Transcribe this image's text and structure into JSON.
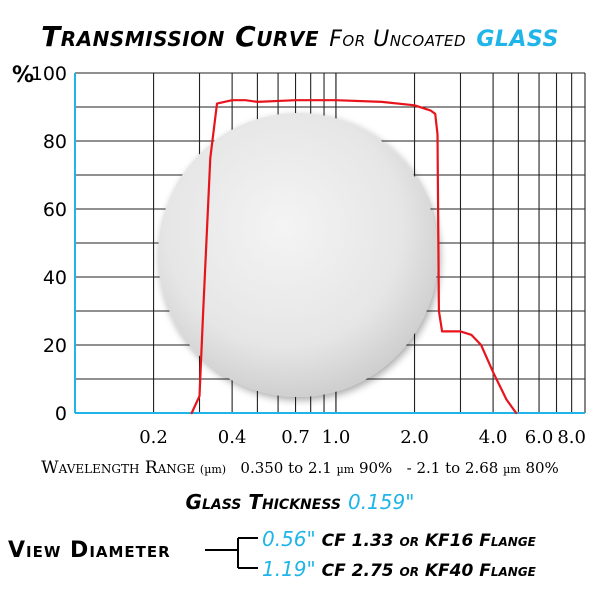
{
  "title": {
    "main": "Transmission Curve",
    "for": "For Uncoated",
    "material": "GLASS"
  },
  "chart_data": {
    "type": "line",
    "ylabel": "%",
    "ylim": [
      0,
      100
    ],
    "yticks": [
      0,
      20,
      40,
      60,
      80,
      100
    ],
    "xticks": [
      {
        "v": 0.2,
        "label": "0.2"
      },
      {
        "v": 0.4,
        "label": "0.4"
      },
      {
        "v": 0.7,
        "label": "0.7"
      },
      {
        "v": 1.0,
        "label": "1.0"
      },
      {
        "v": 2.0,
        "label": "2.0"
      },
      {
        "v": 4.0,
        "label": "4.0"
      },
      {
        "v": 6.0,
        "label": "6.0"
      },
      {
        "v": 8.0,
        "label": "8.0"
      }
    ],
    "x_scale": "log",
    "xlim": [
      0.1,
      9.0
    ],
    "grid": true,
    "series": [
      {
        "color": "#e8141c",
        "x": [
          0.28,
          0.3,
          0.31,
          0.33,
          0.35,
          0.4,
          0.45,
          0.5,
          0.7,
          1.0,
          1.5,
          2.0,
          2.3,
          2.4,
          2.45,
          2.48,
          2.55,
          3.0,
          3.3,
          3.6,
          4.0,
          4.5,
          4.9
        ],
        "y": [
          0,
          5,
          30,
          75,
          91,
          92,
          92,
          91.5,
          92,
          92,
          91.5,
          90.5,
          89,
          88,
          82,
          30,
          24,
          24,
          23,
          20,
          12,
          4,
          0
        ]
      }
    ]
  },
  "wavelength": {
    "label": "Wavelength Range",
    "unit": "(µm)",
    "range1": "0.350 to 2.1",
    "unit1": "µm",
    "pct1": "90%",
    "range2": "- 2.1 to 2.68",
    "unit2": "µm",
    "pct2": "80%"
  },
  "thickness": {
    "label": "Glass Thickness",
    "value": "0.159\""
  },
  "view": {
    "label": "View Diameter",
    "rows": [
      {
        "diameter": "0.56\"",
        "text": "CF 1.33 or KF16 Flange"
      },
      {
        "diameter": "1.19\"",
        "text": "CF 2.75 or KF40 Flange"
      }
    ]
  }
}
